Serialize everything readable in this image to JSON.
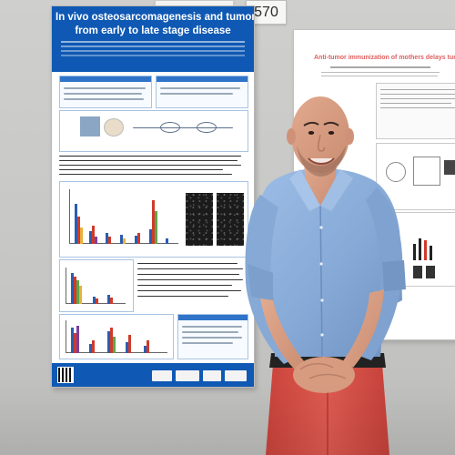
{
  "poster_number": "570",
  "left_poster": {
    "title_line1": "In vivo osteosarcomagenesis and tumor immunoediting:",
    "title_line2": "from early to late stage disease"
  },
  "right_poster": {
    "title": "Anti-tumor immunization of mothers delays tumor development in cancer-prone offspring"
  },
  "colors": {
    "poster_blue": "#0f59b4",
    "shirt_blue": "#8fb3de",
    "trousers_red": "#d9524a",
    "wall_gray": "#c9c9c7"
  }
}
